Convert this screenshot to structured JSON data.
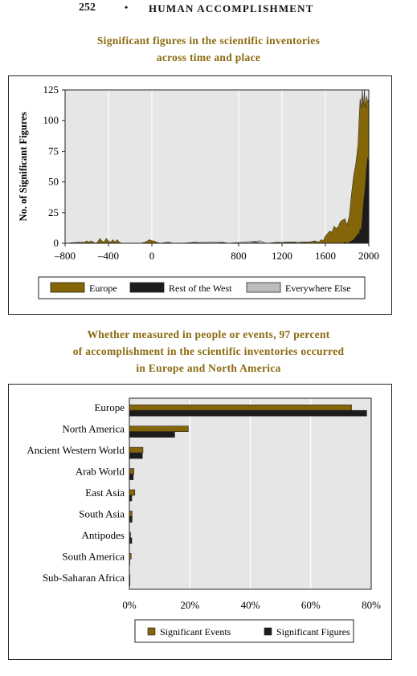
{
  "header": {
    "page_number": "252",
    "bullet": "•",
    "running_title": "HUMAN ACCOMPLISHMENT"
  },
  "colors": {
    "europe": "#846508",
    "rest_of_west": "#1c1c1c",
    "everywhere_else": "#bdbdbd",
    "plot_bg": "#e6e6e6",
    "caption": "#8a6a10"
  },
  "chart_data": [
    {
      "type": "area",
      "title": "Significant figures in the scientific inventories across time and place",
      "title_lines": [
        "Significant figures in the scientific inventories",
        "across time and place"
      ],
      "ylabel": "No. of Significant Figures",
      "xlabel": "",
      "xlim": [
        -800,
        2000
      ],
      "ylim": [
        0,
        125
      ],
      "x_ticks": [
        -800,
        -400,
        0,
        800,
        1200,
        1600,
        2000
      ],
      "x_tick_labels": [
        "–800",
        "–400",
        "0",
        "800",
        "1200",
        "1600",
        "2000"
      ],
      "y_ticks": [
        0,
        25,
        50,
        75,
        100,
        125
      ],
      "grid": true,
      "legend_position": "bottom",
      "series": [
        {
          "name": "Europe",
          "color": "#846508",
          "points": [
            [
              -800,
              0
            ],
            [
              -700,
              0
            ],
            [
              -680,
              1
            ],
            [
              -660,
              0
            ],
            [
              -620,
              1
            ],
            [
              -600,
              2
            ],
            [
              -580,
              1
            ],
            [
              -560,
              2
            ],
            [
              -540,
              1
            ],
            [
              -520,
              0
            ],
            [
              -500,
              1
            ],
            [
              -480,
              4
            ],
            [
              -460,
              2
            ],
            [
              -440,
              1
            ],
            [
              -420,
              4
            ],
            [
              -400,
              2
            ],
            [
              -380,
              1
            ],
            [
              -360,
              3
            ],
            [
              -340,
              1
            ],
            [
              -320,
              3
            ],
            [
              -300,
              1
            ],
            [
              -280,
              0
            ],
            [
              -200,
              0
            ],
            [
              -100,
              0
            ],
            [
              -60,
              1
            ],
            [
              -40,
              2
            ],
            [
              -20,
              3
            ],
            [
              0,
              2
            ],
            [
              20,
              2
            ],
            [
              40,
              1
            ],
            [
              80,
              0
            ],
            [
              150,
              1
            ],
            [
              200,
              0
            ],
            [
              300,
              0
            ],
            [
              400,
              1
            ],
            [
              450,
              0
            ],
            [
              500,
              0
            ],
            [
              600,
              0
            ],
            [
              650,
              1
            ],
            [
              700,
              0
            ],
            [
              800,
              0
            ],
            [
              900,
              0
            ],
            [
              950,
              1
            ],
            [
              1000,
              0
            ],
            [
              1100,
              0
            ],
            [
              1150,
              1
            ],
            [
              1200,
              0
            ],
            [
              1250,
              1
            ],
            [
              1300,
              1
            ],
            [
              1350,
              0
            ],
            [
              1400,
              1
            ],
            [
              1450,
              1
            ],
            [
              1500,
              2
            ],
            [
              1540,
              1
            ],
            [
              1560,
              3
            ],
            [
              1580,
              2
            ],
            [
              1600,
              6
            ],
            [
              1620,
              8
            ],
            [
              1640,
              10
            ],
            [
              1660,
              9
            ],
            [
              1680,
              14
            ],
            [
              1700,
              12
            ],
            [
              1720,
              14
            ],
            [
              1740,
              18
            ],
            [
              1760,
              19
            ],
            [
              1780,
              20
            ],
            [
              1800,
              15
            ],
            [
              1820,
              22
            ],
            [
              1840,
              40
            ],
            [
              1860,
              55
            ],
            [
              1880,
              65
            ],
            [
              1900,
              80
            ],
            [
              1910,
              100
            ],
            [
              1920,
              118
            ],
            [
              1930,
              110
            ],
            [
              1940,
              125
            ],
            [
              1950,
              112
            ],
            [
              1960,
              125
            ],
            [
              1970,
              110
            ],
            [
              1980,
              120
            ],
            [
              1990,
              115
            ],
            [
              2000,
              118
            ]
          ]
        },
        {
          "name": "Rest of the West",
          "color": "#1c1c1c",
          "points": [
            [
              -800,
              0
            ],
            [
              1700,
              0
            ],
            [
              1760,
              0
            ],
            [
              1780,
              1
            ],
            [
              1800,
              0
            ],
            [
              1820,
              1
            ],
            [
              1840,
              2
            ],
            [
              1860,
              3
            ],
            [
              1880,
              5
            ],
            [
              1900,
              8
            ],
            [
              1910,
              7
            ],
            [
              1920,
              12
            ],
            [
              1930,
              10
            ],
            [
              1940,
              20
            ],
            [
              1950,
              32
            ],
            [
              1960,
              40
            ],
            [
              1970,
              50
            ],
            [
              1980,
              62
            ],
            [
              1990,
              70
            ],
            [
              2000,
              65
            ]
          ]
        },
        {
          "name": "Everywhere Else",
          "color": "#bdbdbd",
          "points": [
            [
              -800,
              0
            ],
            [
              -650,
              1
            ],
            [
              -600,
              0
            ],
            [
              -300,
              0
            ],
            [
              200,
              0
            ],
            [
              600,
              1
            ],
            [
              700,
              0
            ],
            [
              1000,
              2
            ],
            [
              1050,
              0
            ],
            [
              1200,
              1
            ],
            [
              1300,
              1
            ],
            [
              1400,
              1
            ],
            [
              1500,
              1
            ],
            [
              1600,
              1
            ],
            [
              1700,
              1
            ],
            [
              1800,
              1
            ],
            [
              1900,
              2
            ],
            [
              2000,
              3
            ]
          ]
        }
      ]
    },
    {
      "type": "bar",
      "orientation": "horizontal",
      "title": "Whether measured in people or events, 97 percent of accomplishment in the scientific inventories occurred in Europe and North America",
      "title_lines": [
        "Whether measured in people or events, 97 percent",
        "of accomplishment in the scientific inventories occurred",
        "in Europe and North America"
      ],
      "xlabel": "",
      "ylabel": "",
      "xlim": [
        0,
        80
      ],
      "x_ticks": [
        0,
        20,
        40,
        60,
        80
      ],
      "x_tick_labels": [
        "0%",
        "20%",
        "40%",
        "60%",
        "80%"
      ],
      "grid": true,
      "legend_position": "bottom",
      "categories": [
        "Europe",
        "North America",
        "Ancient Western World",
        "Arab World",
        "East Asia",
        "South Asia",
        "Antipodes",
        "South America",
        "Sub-Saharan Africa"
      ],
      "series": [
        {
          "name": "Significant Events",
          "color": "#846508",
          "values": [
            73.5,
            19.5,
            4.5,
            1.5,
            1.8,
            0.9,
            0.4,
            0.6,
            0.2
          ]
        },
        {
          "name": "Significant Figures",
          "color": "#1c1c1c",
          "values": [
            78.5,
            15.0,
            4.3,
            1.3,
            0.8,
            0.9,
            0.8,
            0.1,
            0.2
          ]
        }
      ]
    }
  ]
}
